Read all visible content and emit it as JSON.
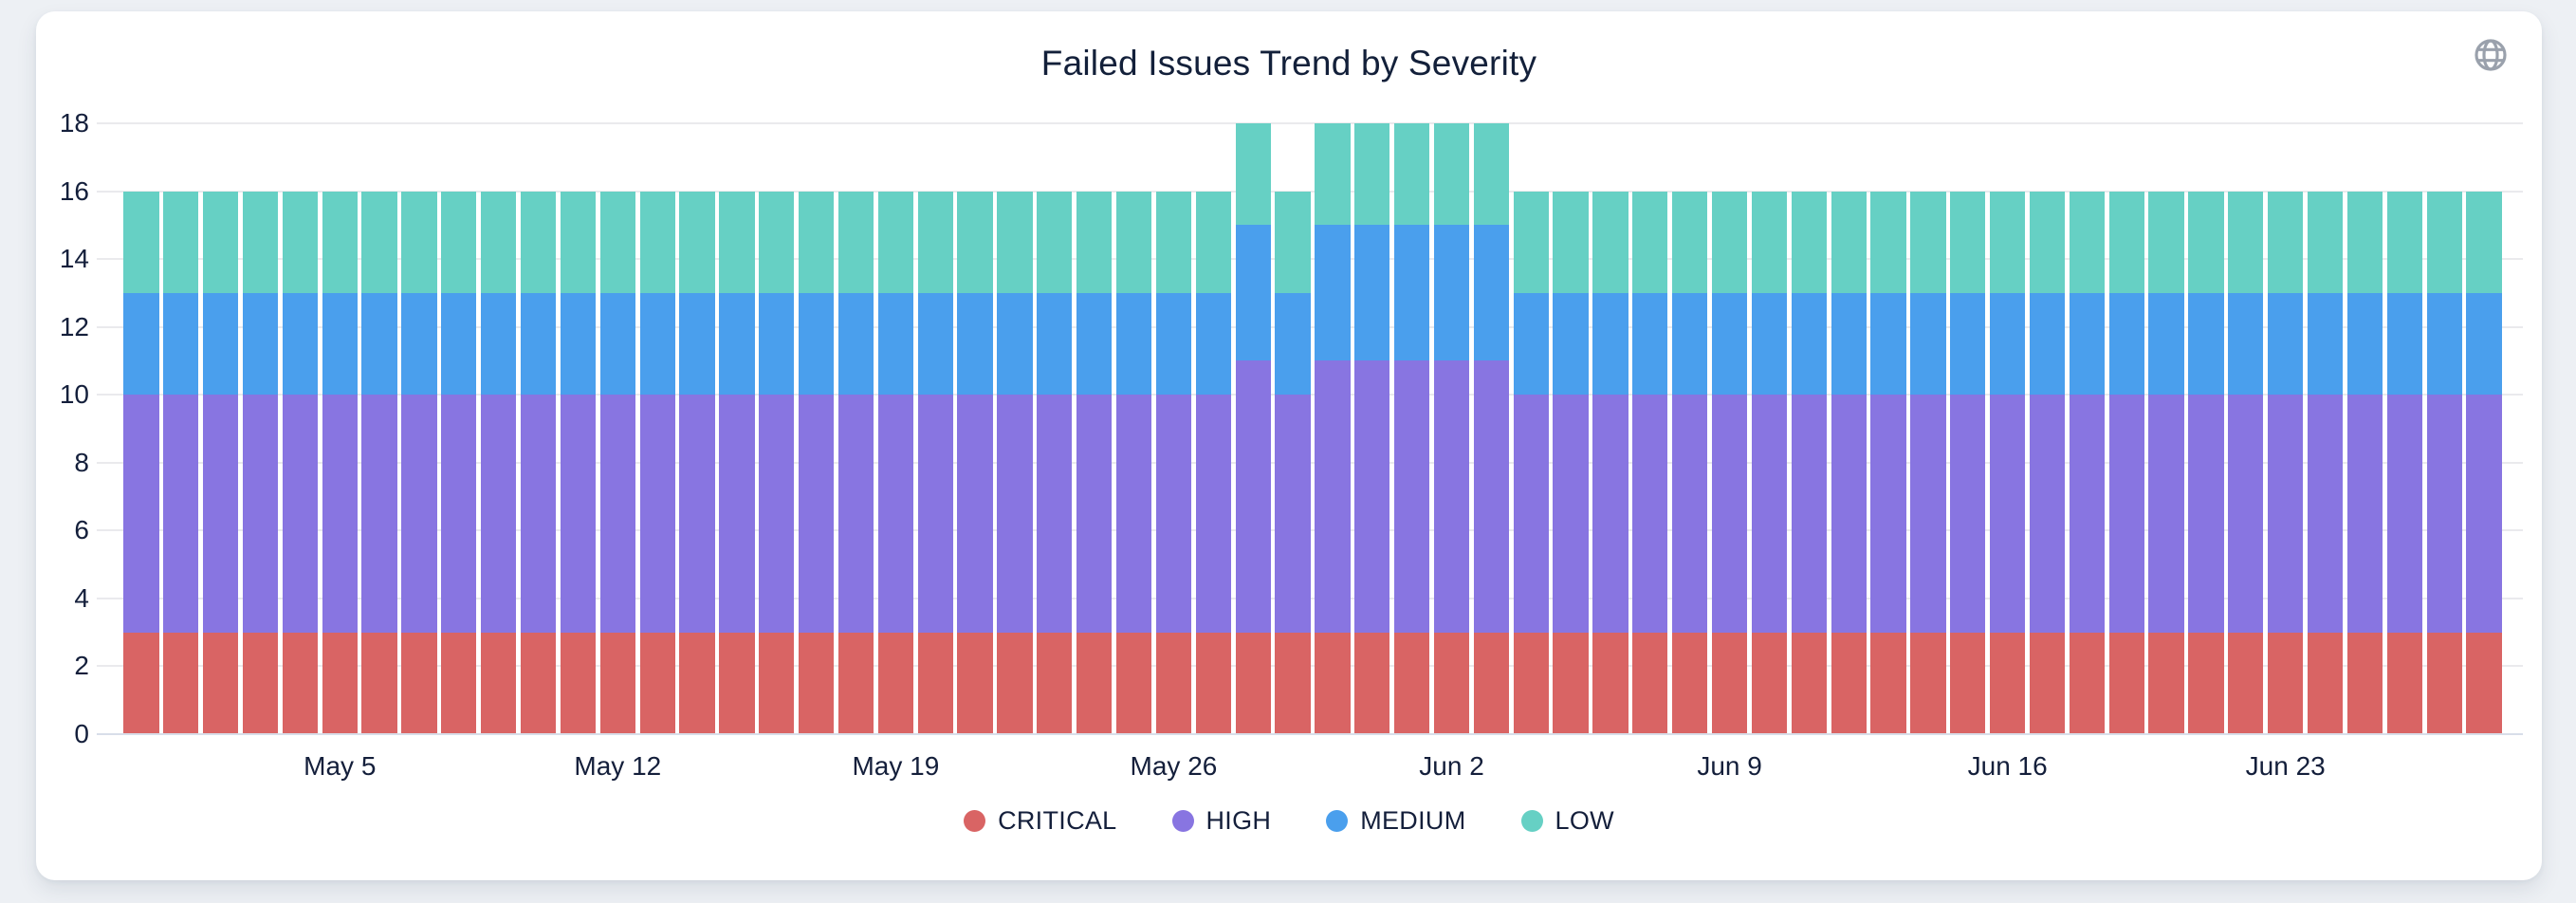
{
  "card": {
    "title": "Failed Issues Trend by Severity"
  },
  "chart_data": {
    "type": "bar",
    "stacked": true,
    "title": "Failed Issues Trend by Severity",
    "xlabel": "",
    "ylabel": "",
    "ylim": [
      0,
      18
    ],
    "yticks": [
      0,
      2,
      4,
      6,
      8,
      10,
      12,
      14,
      16,
      18
    ],
    "grid": true,
    "legend_position": "bottom",
    "x": [
      "Apr 30",
      "May 1",
      "May 2",
      "May 3",
      "May 4",
      "May 5",
      "May 6",
      "May 7",
      "May 8",
      "May 9",
      "May 10",
      "May 11",
      "May 12",
      "May 13",
      "May 14",
      "May 15",
      "May 16",
      "May 17",
      "May 18",
      "May 19",
      "May 20",
      "May 21",
      "May 22",
      "May 23",
      "May 24",
      "May 25",
      "May 26",
      "May 27",
      "May 28",
      "May 29",
      "May 30",
      "May 31",
      "Jun 1",
      "Jun 2",
      "Jun 3",
      "Jun 4",
      "Jun 5",
      "Jun 6",
      "Jun 7",
      "Jun 8",
      "Jun 9",
      "Jun 10",
      "Jun 11",
      "Jun 12",
      "Jun 13",
      "Jun 14",
      "Jun 15",
      "Jun 16",
      "Jun 17",
      "Jun 18",
      "Jun 19",
      "Jun 20",
      "Jun 21",
      "Jun 22",
      "Jun 23",
      "Jun 24",
      "Jun 25",
      "Jun 26",
      "Jun 27",
      "Jun 28"
    ],
    "x_tick_labels": [
      "May 5",
      "May 12",
      "May 19",
      "May 26",
      "Jun 2",
      "Jun 9",
      "Jun 16",
      "Jun 23"
    ],
    "series": [
      {
        "name": "CRITICAL",
        "color": "#D96464",
        "values": [
          3,
          3,
          3,
          3,
          3,
          3,
          3,
          3,
          3,
          3,
          3,
          3,
          3,
          3,
          3,
          3,
          3,
          3,
          3,
          3,
          3,
          3,
          3,
          3,
          3,
          3,
          3,
          3,
          3,
          3,
          3,
          3,
          3,
          3,
          3,
          3,
          3,
          3,
          3,
          3,
          3,
          3,
          3,
          3,
          3,
          3,
          3,
          3,
          3,
          3,
          3,
          3,
          3,
          3,
          3,
          3,
          3,
          3,
          3,
          3
        ]
      },
      {
        "name": "HIGH",
        "color": "#8875E1",
        "values": [
          7,
          7,
          7,
          7,
          7,
          7,
          7,
          7,
          7,
          7,
          7,
          7,
          7,
          7,
          7,
          7,
          7,
          7,
          7,
          7,
          7,
          7,
          7,
          7,
          7,
          7,
          7,
          7,
          8,
          7,
          8,
          8,
          8,
          8,
          8,
          7,
          7,
          7,
          7,
          7,
          7,
          7,
          7,
          7,
          7,
          7,
          7,
          7,
          7,
          7,
          7,
          7,
          7,
          7,
          7,
          7,
          7,
          7,
          7,
          7
        ]
      },
      {
        "name": "MEDIUM",
        "color": "#4A9FED",
        "values": [
          3,
          3,
          3,
          3,
          3,
          3,
          3,
          3,
          3,
          3,
          3,
          3,
          3,
          3,
          3,
          3,
          3,
          3,
          3,
          3,
          3,
          3,
          3,
          3,
          3,
          3,
          3,
          3,
          4,
          3,
          4,
          4,
          4,
          4,
          4,
          3,
          3,
          3,
          3,
          3,
          3,
          3,
          3,
          3,
          3,
          3,
          3,
          3,
          3,
          3,
          3,
          3,
          3,
          3,
          3,
          3,
          3,
          3,
          3,
          3
        ]
      },
      {
        "name": "LOW",
        "color": "#66D0C4",
        "values": [
          3,
          3,
          3,
          3,
          3,
          3,
          3,
          3,
          3,
          3,
          3,
          3,
          3,
          3,
          3,
          3,
          3,
          3,
          3,
          3,
          3,
          3,
          3,
          3,
          3,
          3,
          3,
          3,
          3,
          3,
          3,
          3,
          3,
          3,
          3,
          3,
          3,
          3,
          3,
          3,
          3,
          3,
          3,
          3,
          3,
          3,
          3,
          3,
          3,
          3,
          3,
          3,
          3,
          3,
          3,
          3,
          3,
          3,
          3,
          3
        ]
      }
    ],
    "colors": {
      "title_text": "#13203A",
      "tick_text": "#141F3B",
      "gridline": "#EAEAED",
      "axis_baseline": "#D8DEE9",
      "card_background": "#FFFFFF",
      "page_background": "#EDF0F4",
      "globe_icon": "#9AA1AC"
    }
  }
}
